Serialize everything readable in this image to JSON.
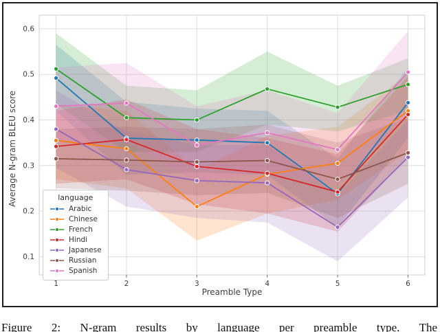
{
  "figure": {
    "caption": "Figure 2: N-gram results by language per preamble type. The"
  },
  "colors": {
    "frame_border": "#1f1f1f",
    "grid": "#dedede",
    "spine": "#cfcfcf",
    "tick_mark": "#666666",
    "tick_text": "#3d3d3d",
    "legend_border": "#cccccc",
    "legend_bg": "rgba(255,255,255,0.85)"
  },
  "chart_data": {
    "type": "line",
    "title": "",
    "xlabel": "Preamble Type",
    "ylabel": "Average N-gram BLEU score",
    "legend_title": "language",
    "legend_position": "lower left",
    "grid": true,
    "x": [
      1,
      2,
      3,
      4,
      5,
      6
    ],
    "xtick_labels": [
      "1",
      "2",
      "3",
      "4",
      "5",
      "6"
    ],
    "ytick_values": [
      0.1,
      0.2,
      0.3,
      0.4,
      0.5,
      0.6
    ],
    "ytick_labels": [
      "0.1",
      "0.2",
      "0.3",
      "0.4",
      "0.5",
      "0.6"
    ],
    "xlim": [
      0.76,
      6.24
    ],
    "ylim": [
      0.06,
      0.63
    ],
    "band_opacity": 0.2,
    "series": [
      {
        "name": "Arabic",
        "color": "#1f77b4",
        "values": [
          0.492,
          0.36,
          0.356,
          0.35,
          0.238,
          0.438
        ],
        "band_low": [
          0.42,
          0.28,
          0.285,
          0.28,
          0.165,
          0.36
        ],
        "band_high": [
          0.565,
          0.44,
          0.425,
          0.42,
          0.315,
          0.515
        ]
      },
      {
        "name": "Chinese",
        "color": "#ff7f0e",
        "values": [
          0.355,
          0.337,
          0.21,
          0.281,
          0.305,
          0.42
        ],
        "band_low": [
          0.27,
          0.25,
          0.135,
          0.195,
          0.225,
          0.33
        ],
        "band_high": [
          0.435,
          0.42,
          0.29,
          0.365,
          0.385,
          0.5
        ]
      },
      {
        "name": "French",
        "color": "#2ca02c",
        "values": [
          0.512,
          0.405,
          0.4,
          0.468,
          0.428,
          0.478
        ],
        "band_low": [
          0.435,
          0.33,
          0.33,
          0.39,
          0.375,
          0.42
        ],
        "band_high": [
          0.59,
          0.475,
          0.465,
          0.55,
          0.475,
          0.535
        ]
      },
      {
        "name": "Hindi",
        "color": "#d62728",
        "values": [
          0.342,
          0.357,
          0.298,
          0.283,
          0.242,
          0.412
        ],
        "band_low": [
          0.26,
          0.27,
          0.215,
          0.195,
          0.155,
          0.32
        ],
        "band_high": [
          0.42,
          0.445,
          0.38,
          0.36,
          0.325,
          0.495
        ]
      },
      {
        "name": "Japanese",
        "color": "#9467bd",
        "values": [
          0.38,
          0.291,
          0.267,
          0.262,
          0.165,
          0.318
        ],
        "band_low": [
          0.295,
          0.21,
          0.185,
          0.175,
          0.09,
          0.23
        ],
        "band_high": [
          0.465,
          0.375,
          0.345,
          0.345,
          0.235,
          0.4
        ]
      },
      {
        "name": "Russian",
        "color": "#8c564b",
        "values": [
          0.315,
          0.312,
          0.308,
          0.311,
          0.27,
          0.328
        ],
        "band_low": [
          0.25,
          0.245,
          0.235,
          0.24,
          0.185,
          0.26
        ],
        "band_high": [
          0.38,
          0.385,
          0.38,
          0.39,
          0.35,
          0.405
        ]
      },
      {
        "name": "Spanish",
        "color": "#e377c2",
        "values": [
          0.43,
          0.437,
          0.345,
          0.372,
          0.335,
          0.505
        ],
        "band_low": [
          0.35,
          0.35,
          0.265,
          0.285,
          0.255,
          0.41
        ],
        "band_high": [
          0.515,
          0.525,
          0.43,
          0.465,
          0.415,
          0.595
        ]
      }
    ]
  }
}
